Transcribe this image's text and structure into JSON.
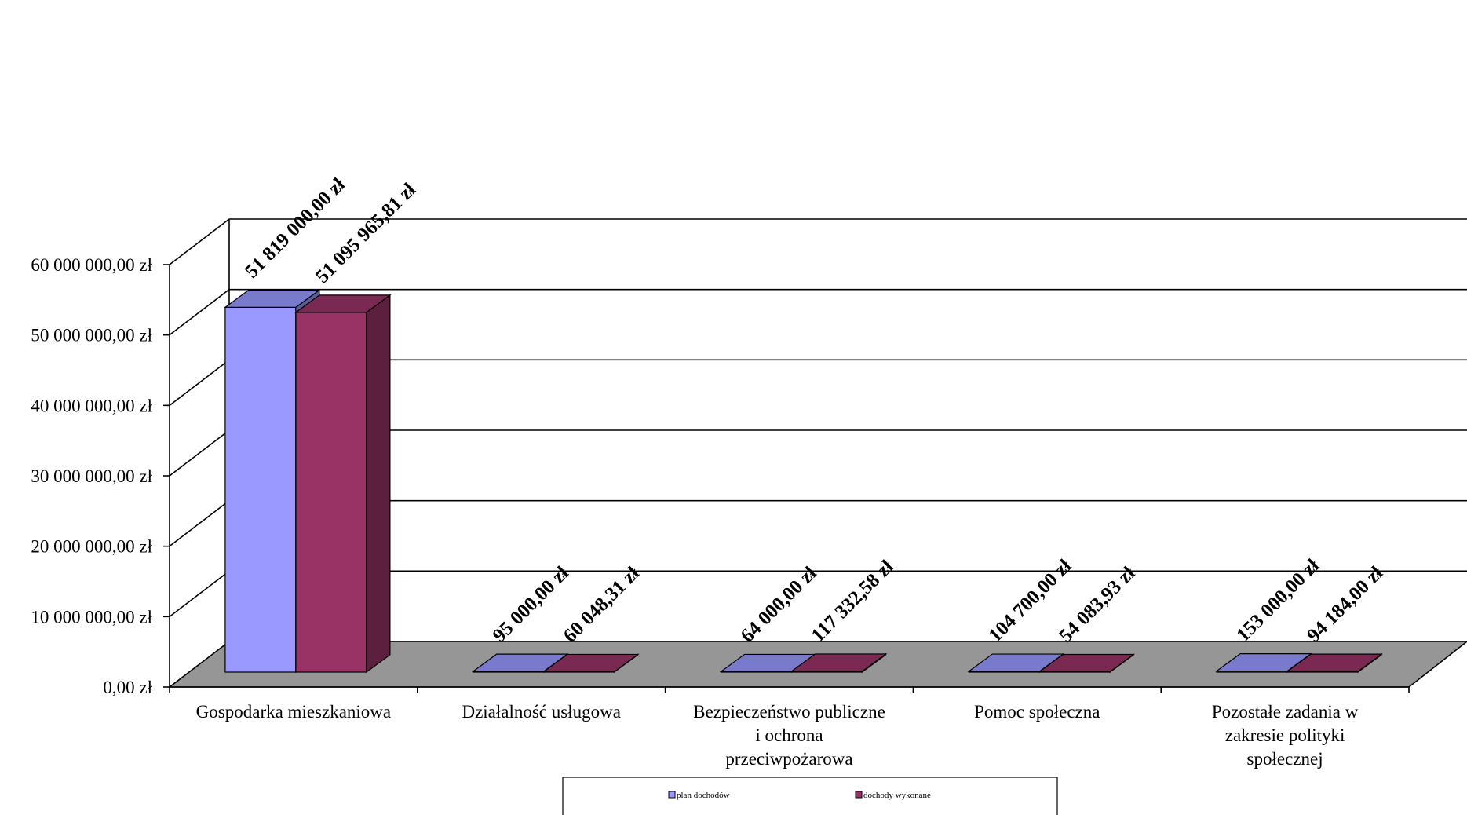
{
  "chart_data": {
    "type": "bar",
    "categories": [
      [
        "Gospodarka mieszkaniowa"
      ],
      [
        "Działalność usługowa"
      ],
      [
        "Bezpieczeństwo publiczne",
        "i ochrona",
        "przeciwpożarowa"
      ],
      [
        "Pomoc społeczna"
      ],
      [
        "Pozostałe zadania w",
        "zakresie polityki",
        "społecznej"
      ]
    ],
    "series": [
      {
        "name": "plan dochodów",
        "color": "#9999ff",
        "values": [
          51819000.0,
          95000.0,
          64000.0,
          104700.0,
          153000.0
        ],
        "labels": [
          "51 819 000,00 zł",
          "95 000,00 zł",
          "64 000,00 zł",
          "104 700,00 zł",
          "153 000,00 zł"
        ]
      },
      {
        "name": "dochody wykonane",
        "color": "#993366",
        "values": [
          51095965.81,
          60048.31,
          117332.58,
          54083.93,
          94184.0
        ],
        "labels": [
          "51 095 965,81 zł",
          "60 048,31 zł",
          "117 332,58 zł",
          "54 083,93 zł",
          "94 184,00 zł"
        ]
      }
    ],
    "yticks": [
      "0,00 zł",
      "10 000 000,00 zł",
      "20 000 000,00 zł",
      "30 000 000,00 zł",
      "40 000 000,00 zł",
      "50 000 000,00 zł",
      "60 000 000,00 zł"
    ],
    "ylim": [
      0,
      60000000
    ],
    "grid": true,
    "legend": "bottom",
    "style": "3d-clustered-column",
    "floor_color": "#969696"
  }
}
